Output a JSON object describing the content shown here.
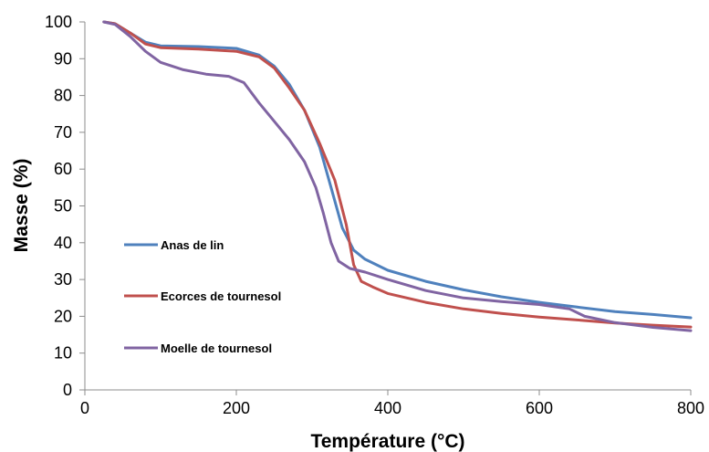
{
  "chart_data": {
    "type": "line",
    "title": "",
    "xlabel": "Température (°C)",
    "ylabel": "Masse (%)",
    "xlim": [
      0,
      800
    ],
    "ylim": [
      0,
      100
    ],
    "xticks": [
      0,
      200,
      400,
      600,
      800
    ],
    "yticks": [
      0,
      10,
      20,
      30,
      40,
      50,
      60,
      70,
      80,
      90,
      100
    ],
    "grid": false,
    "legend_position": "center-left",
    "series": [
      {
        "name": "Anas de lin",
        "color": "#4f81bd",
        "points": [
          [
            25,
            100
          ],
          [
            40,
            99.5
          ],
          [
            60,
            97
          ],
          [
            80,
            94.5
          ],
          [
            100,
            93.5
          ],
          [
            150,
            93.3
          ],
          [
            200,
            92.8
          ],
          [
            230,
            91
          ],
          [
            250,
            88
          ],
          [
            270,
            83
          ],
          [
            290,
            76
          ],
          [
            310,
            66
          ],
          [
            325,
            55
          ],
          [
            340,
            44
          ],
          [
            355,
            38
          ],
          [
            370,
            35.5
          ],
          [
            400,
            32.5
          ],
          [
            450,
            29.5
          ],
          [
            500,
            27.2
          ],
          [
            550,
            25.3
          ],
          [
            600,
            23.8
          ],
          [
            650,
            22.5
          ],
          [
            700,
            21.3
          ],
          [
            750,
            20.5
          ],
          [
            800,
            19.6
          ]
        ]
      },
      {
        "name": "Ecorces de tournesol",
        "color": "#c0504d",
        "points": [
          [
            25,
            100
          ],
          [
            40,
            99.5
          ],
          [
            60,
            97
          ],
          [
            80,
            94
          ],
          [
            100,
            93
          ],
          [
            150,
            92.6
          ],
          [
            200,
            92
          ],
          [
            230,
            90.5
          ],
          [
            250,
            87.5
          ],
          [
            270,
            82
          ],
          [
            290,
            76
          ],
          [
            310,
            67
          ],
          [
            330,
            57
          ],
          [
            345,
            45
          ],
          [
            355,
            34
          ],
          [
            365,
            29.5
          ],
          [
            380,
            28
          ],
          [
            400,
            26.2
          ],
          [
            450,
            23.8
          ],
          [
            500,
            22
          ],
          [
            550,
            20.8
          ],
          [
            600,
            19.8
          ],
          [
            650,
            19
          ],
          [
            700,
            18.2
          ],
          [
            750,
            17.6
          ],
          [
            800,
            17.1
          ]
        ]
      },
      {
        "name": "Moelle de tournesol",
        "color": "#8064a2",
        "points": [
          [
            25,
            100
          ],
          [
            40,
            99.3
          ],
          [
            60,
            96
          ],
          [
            80,
            92
          ],
          [
            100,
            89
          ],
          [
            130,
            87
          ],
          [
            160,
            85.8
          ],
          [
            190,
            85.2
          ],
          [
            210,
            83.5
          ],
          [
            230,
            78
          ],
          [
            250,
            73
          ],
          [
            270,
            68
          ],
          [
            290,
            62
          ],
          [
            305,
            55
          ],
          [
            315,
            48
          ],
          [
            325,
            40
          ],
          [
            335,
            35
          ],
          [
            350,
            33
          ],
          [
            370,
            32
          ],
          [
            400,
            30
          ],
          [
            450,
            27
          ],
          [
            500,
            25
          ],
          [
            550,
            24
          ],
          [
            600,
            23.2
          ],
          [
            640,
            22
          ],
          [
            660,
            20
          ],
          [
            700,
            18.3
          ],
          [
            750,
            17
          ],
          [
            800,
            16.1
          ]
        ]
      }
    ]
  }
}
